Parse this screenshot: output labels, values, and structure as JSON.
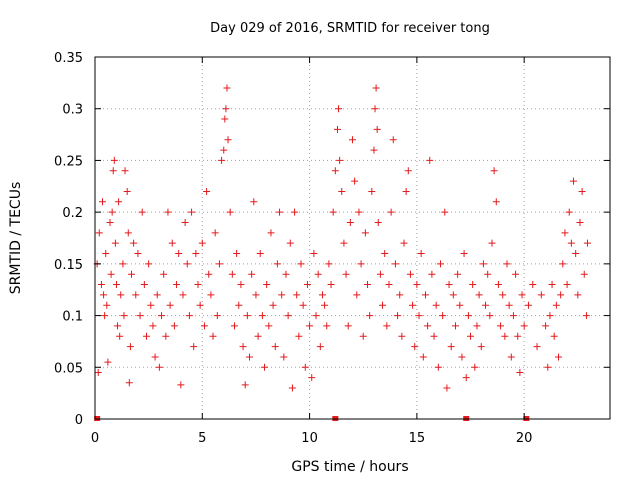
{
  "chart_data": {
    "type": "scatter",
    "title": "Day 029 of 2016, SRMTID for receiver tong",
    "xlabel": "GPS time / hours",
    "ylabel": "SRMTID / TECUs",
    "xlim": [
      0,
      24
    ],
    "ylim": [
      0,
      0.35
    ],
    "xticks": [
      0,
      5,
      10,
      15,
      20
    ],
    "xtick_labels": [
      "0",
      "5",
      "10",
      "15",
      "20"
    ],
    "yticks": [
      0,
      0.05,
      0.1,
      0.15,
      0.2,
      0.25,
      0.3,
      0.35
    ],
    "ytick_labels": [
      "0",
      "0.05",
      "0.1",
      "0.15",
      "0.2",
      "0.25",
      "0.3",
      "0.35"
    ],
    "grid": true,
    "color": "#e41a1c",
    "marker": "plus",
    "zero_markers_x": [
      0.1,
      11.2,
      17.3,
      20.1
    ],
    "series": [
      {
        "name": "SRMTID",
        "points": [
          [
            0.1,
            0.15
          ],
          [
            0.15,
            0.045
          ],
          [
            0.2,
            0.18
          ],
          [
            0.3,
            0.13
          ],
          [
            0.35,
            0.21
          ],
          [
            0.4,
            0.12
          ],
          [
            0.45,
            0.1
          ],
          [
            0.5,
            0.16
          ],
          [
            0.55,
            0.11
          ],
          [
            0.6,
            0.055
          ],
          [
            0.7,
            0.19
          ],
          [
            0.75,
            0.14
          ],
          [
            0.8,
            0.2
          ],
          [
            0.85,
            0.24
          ],
          [
            0.9,
            0.25
          ],
          [
            0.95,
            0.17
          ],
          [
            1.0,
            0.13
          ],
          [
            1.05,
            0.09
          ],
          [
            1.1,
            0.21
          ],
          [
            1.15,
            0.08
          ],
          [
            1.2,
            0.12
          ],
          [
            1.3,
            0.15
          ],
          [
            1.35,
            0.1
          ],
          [
            1.4,
            0.24
          ],
          [
            1.5,
            0.22
          ],
          [
            1.55,
            0.18
          ],
          [
            1.6,
            0.035
          ],
          [
            1.65,
            0.07
          ],
          [
            1.7,
            0.14
          ],
          [
            1.8,
            0.17
          ],
          [
            1.9,
            0.12
          ],
          [
            2.0,
            0.16
          ],
          [
            2.1,
            0.1
          ],
          [
            2.2,
            0.2
          ],
          [
            2.3,
            0.13
          ],
          [
            2.4,
            0.08
          ],
          [
            2.5,
            0.15
          ],
          [
            2.6,
            0.11
          ],
          [
            2.7,
            0.09
          ],
          [
            2.8,
            0.06
          ],
          [
            2.9,
            0.12
          ],
          [
            3.0,
            0.05
          ],
          [
            3.1,
            0.1
          ],
          [
            3.2,
            0.14
          ],
          [
            3.3,
            0.08
          ],
          [
            3.4,
            0.2
          ],
          [
            3.5,
            0.11
          ],
          [
            3.6,
            0.17
          ],
          [
            3.7,
            0.09
          ],
          [
            3.8,
            0.13
          ],
          [
            3.9,
            0.16
          ],
          [
            4.0,
            0.033
          ],
          [
            4.1,
            0.12
          ],
          [
            4.2,
            0.19
          ],
          [
            4.3,
            0.15
          ],
          [
            4.4,
            0.1
          ],
          [
            4.5,
            0.2
          ],
          [
            4.6,
            0.07
          ],
          [
            4.7,
            0.16
          ],
          [
            4.8,
            0.13
          ],
          [
            4.9,
            0.11
          ],
          [
            5.0,
            0.17
          ],
          [
            5.1,
            0.09
          ],
          [
            5.2,
            0.22
          ],
          [
            5.3,
            0.14
          ],
          [
            5.4,
            0.12
          ],
          [
            5.5,
            0.08
          ],
          [
            5.6,
            0.18
          ],
          [
            5.7,
            0.1
          ],
          [
            5.8,
            0.15
          ],
          [
            5.9,
            0.25
          ],
          [
            6.0,
            0.26
          ],
          [
            6.05,
            0.29
          ],
          [
            6.1,
            0.3
          ],
          [
            6.15,
            0.32
          ],
          [
            6.2,
            0.27
          ],
          [
            6.3,
            0.2
          ],
          [
            6.4,
            0.14
          ],
          [
            6.5,
            0.09
          ],
          [
            6.6,
            0.16
          ],
          [
            6.7,
            0.11
          ],
          [
            6.8,
            0.13
          ],
          [
            6.9,
            0.07
          ],
          [
            7.0,
            0.033
          ],
          [
            7.1,
            0.1
          ],
          [
            7.2,
            0.06
          ],
          [
            7.3,
            0.14
          ],
          [
            7.4,
            0.21
          ],
          [
            7.5,
            0.12
          ],
          [
            7.6,
            0.08
          ],
          [
            7.7,
            0.16
          ],
          [
            7.8,
            0.1
          ],
          [
            7.9,
            0.05
          ],
          [
            8.0,
            0.13
          ],
          [
            8.1,
            0.09
          ],
          [
            8.2,
            0.18
          ],
          [
            8.3,
            0.11
          ],
          [
            8.4,
            0.07
          ],
          [
            8.5,
            0.15
          ],
          [
            8.6,
            0.2
          ],
          [
            8.7,
            0.12
          ],
          [
            8.8,
            0.06
          ],
          [
            8.9,
            0.14
          ],
          [
            9.0,
            0.1
          ],
          [
            9.1,
            0.17
          ],
          [
            9.2,
            0.03
          ],
          [
            9.3,
            0.2
          ],
          [
            9.4,
            0.12
          ],
          [
            9.5,
            0.08
          ],
          [
            9.6,
            0.15
          ],
          [
            9.7,
            0.11
          ],
          [
            9.8,
            0.05
          ],
          [
            9.9,
            0.13
          ],
          [
            10.0,
            0.09
          ],
          [
            10.1,
            0.04
          ],
          [
            10.2,
            0.16
          ],
          [
            10.3,
            0.1
          ],
          [
            10.4,
            0.14
          ],
          [
            10.5,
            0.07
          ],
          [
            10.6,
            0.12
          ],
          [
            10.7,
            0.11
          ],
          [
            10.8,
            0.09
          ],
          [
            10.9,
            0.15
          ],
          [
            11.0,
            0.13
          ],
          [
            11.1,
            0.2
          ],
          [
            11.2,
            0.24
          ],
          [
            11.3,
            0.28
          ],
          [
            11.35,
            0.3
          ],
          [
            11.4,
            0.25
          ],
          [
            11.5,
            0.22
          ],
          [
            11.6,
            0.17
          ],
          [
            11.7,
            0.14
          ],
          [
            11.8,
            0.09
          ],
          [
            11.9,
            0.19
          ],
          [
            12.0,
            0.27
          ],
          [
            12.1,
            0.23
          ],
          [
            12.2,
            0.12
          ],
          [
            12.3,
            0.2
          ],
          [
            12.4,
            0.15
          ],
          [
            12.5,
            0.08
          ],
          [
            12.6,
            0.18
          ],
          [
            12.7,
            0.13
          ],
          [
            12.8,
            0.1
          ],
          [
            12.9,
            0.22
          ],
          [
            13.0,
            0.26
          ],
          [
            13.05,
            0.3
          ],
          [
            13.1,
            0.32
          ],
          [
            13.15,
            0.28
          ],
          [
            13.2,
            0.19
          ],
          [
            13.3,
            0.14
          ],
          [
            13.4,
            0.11
          ],
          [
            13.5,
            0.16
          ],
          [
            13.6,
            0.09
          ],
          [
            13.7,
            0.13
          ],
          [
            13.8,
            0.2
          ],
          [
            13.9,
            0.27
          ],
          [
            14.0,
            0.15
          ],
          [
            14.1,
            0.1
          ],
          [
            14.2,
            0.12
          ],
          [
            14.3,
            0.08
          ],
          [
            14.4,
            0.17
          ],
          [
            14.5,
            0.22
          ],
          [
            14.6,
            0.24
          ],
          [
            14.7,
            0.14
          ],
          [
            14.8,
            0.11
          ],
          [
            14.9,
            0.07
          ],
          [
            15.0,
            0.13
          ],
          [
            15.1,
            0.1
          ],
          [
            15.2,
            0.16
          ],
          [
            15.3,
            0.06
          ],
          [
            15.4,
            0.12
          ],
          [
            15.5,
            0.09
          ],
          [
            15.6,
            0.25
          ],
          [
            15.7,
            0.14
          ],
          [
            15.8,
            0.08
          ],
          [
            15.9,
            0.11
          ],
          [
            16.0,
            0.05
          ],
          [
            16.1,
            0.15
          ],
          [
            16.2,
            0.1
          ],
          [
            16.3,
            0.2
          ],
          [
            16.4,
            0.03
          ],
          [
            16.5,
            0.13
          ],
          [
            16.6,
            0.07
          ],
          [
            16.7,
            0.12
          ],
          [
            16.8,
            0.09
          ],
          [
            16.9,
            0.14
          ],
          [
            17.0,
            0.11
          ],
          [
            17.1,
            0.06
          ],
          [
            17.2,
            0.16
          ],
          [
            17.3,
            0.04
          ],
          [
            17.4,
            0.1
          ],
          [
            17.5,
            0.08
          ],
          [
            17.6,
            0.13
          ],
          [
            17.7,
            0.05
          ],
          [
            17.8,
            0.09
          ],
          [
            17.9,
            0.12
          ],
          [
            18.0,
            0.07
          ],
          [
            18.1,
            0.15
          ],
          [
            18.2,
            0.11
          ],
          [
            18.3,
            0.14
          ],
          [
            18.4,
            0.1
          ],
          [
            18.5,
            0.17
          ],
          [
            18.6,
            0.24
          ],
          [
            18.7,
            0.21
          ],
          [
            18.8,
            0.13
          ],
          [
            18.9,
            0.09
          ],
          [
            19.0,
            0.12
          ],
          [
            19.1,
            0.08
          ],
          [
            19.2,
            0.15
          ],
          [
            19.3,
            0.11
          ],
          [
            19.4,
            0.06
          ],
          [
            19.5,
            0.1
          ],
          [
            19.6,
            0.14
          ],
          [
            19.7,
            0.08
          ],
          [
            19.8,
            0.045
          ],
          [
            19.9,
            0.12
          ],
          [
            20.0,
            0.09
          ],
          [
            20.2,
            0.11
          ],
          [
            20.4,
            0.13
          ],
          [
            20.6,
            0.07
          ],
          [
            20.8,
            0.12
          ],
          [
            21.0,
            0.09
          ],
          [
            21.1,
            0.05
          ],
          [
            21.2,
            0.1
          ],
          [
            21.3,
            0.13
          ],
          [
            21.4,
            0.08
          ],
          [
            21.5,
            0.11
          ],
          [
            21.6,
            0.06
          ],
          [
            21.7,
            0.12
          ],
          [
            21.8,
            0.15
          ],
          [
            21.9,
            0.18
          ],
          [
            22.0,
            0.13
          ],
          [
            22.1,
            0.2
          ],
          [
            22.2,
            0.17
          ],
          [
            22.3,
            0.23
          ],
          [
            22.4,
            0.16
          ],
          [
            22.5,
            0.12
          ],
          [
            22.6,
            0.19
          ],
          [
            22.7,
            0.22
          ],
          [
            22.8,
            0.14
          ],
          [
            22.9,
            0.1
          ],
          [
            22.95,
            0.17
          ]
        ]
      }
    ]
  }
}
